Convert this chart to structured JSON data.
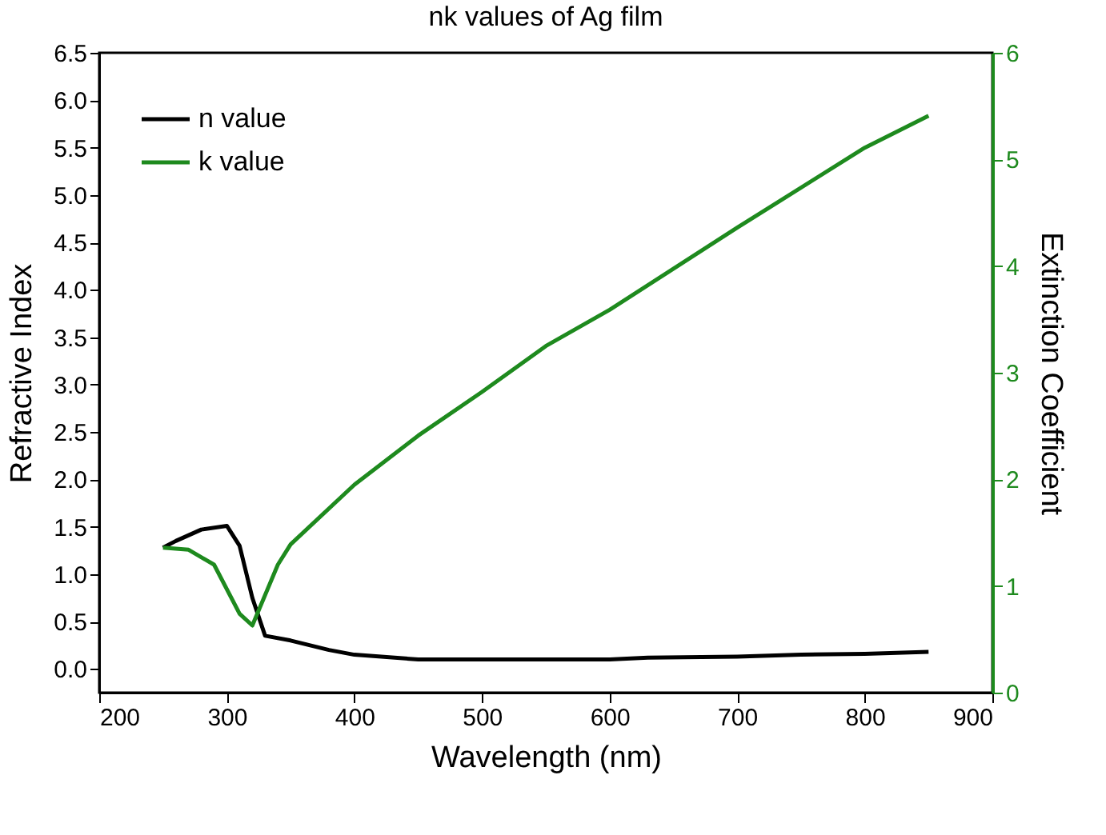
{
  "chart_data": {
    "type": "line",
    "title": "nk values of Ag film",
    "xlabel": "Wavelength (nm)",
    "ylabel": "Refractive Index",
    "y2label": "Extinction Coefficient",
    "xlim": [
      200,
      900
    ],
    "xticks": [
      200,
      300,
      400,
      500,
      600,
      700,
      800,
      900
    ],
    "ylim": [
      -0.25,
      6.5
    ],
    "yticks": [
      {
        "value": 0,
        "label": "0.0"
      },
      {
        "value": 0.5,
        "label": "0.5"
      },
      {
        "value": 1,
        "label": "1.0"
      },
      {
        "value": 1.5,
        "label": "1.5"
      },
      {
        "value": 2,
        "label": "2.0"
      },
      {
        "value": 2.5,
        "label": "2.5"
      },
      {
        "value": 3,
        "label": "3.0"
      },
      {
        "value": 3.5,
        "label": "3.5"
      },
      {
        "value": 4,
        "label": "4.0"
      },
      {
        "value": 4.5,
        "label": "4.5"
      },
      {
        "value": 5,
        "label": "5.0"
      },
      {
        "value": 5.5,
        "label": "5.5"
      },
      {
        "value": 6,
        "label": "6.0"
      },
      {
        "value": 6.5,
        "label": "6.5"
      }
    ],
    "y2lim": [
      0,
      6
    ],
    "y2ticks": [
      0,
      1,
      2,
      3,
      4,
      5,
      6
    ],
    "grid": false,
    "legend": "top left",
    "marker": "none",
    "line_style": "solid",
    "series": [
      {
        "name": "n value",
        "color": "#000000",
        "x": [
          250,
          260,
          280,
          300,
          310,
          320,
          330,
          350,
          380,
          400,
          450,
          500,
          600,
          630,
          700,
          750,
          800,
          850
        ],
        "values": [
          1.28,
          1.35,
          1.47,
          1.51,
          1.3,
          0.75,
          0.35,
          0.3,
          0.2,
          0.15,
          0.1,
          0.1,
          0.1,
          0.12,
          0.13,
          0.15,
          0.16,
          0.18
        ]
      },
      {
        "name": "k value",
        "color": "#1e8a1e",
        "axis": "y2",
        "x": [
          250,
          270,
          290,
          310,
          320,
          340,
          350,
          400,
          450,
          500,
          550,
          600,
          700,
          800,
          850
        ],
        "values": [
          1.36,
          1.34,
          1.2,
          0.74,
          0.63,
          1.2,
          1.39,
          1.95,
          2.41,
          2.82,
          3.25,
          3.59,
          4.36,
          5.11,
          5.41
        ]
      }
    ]
  }
}
